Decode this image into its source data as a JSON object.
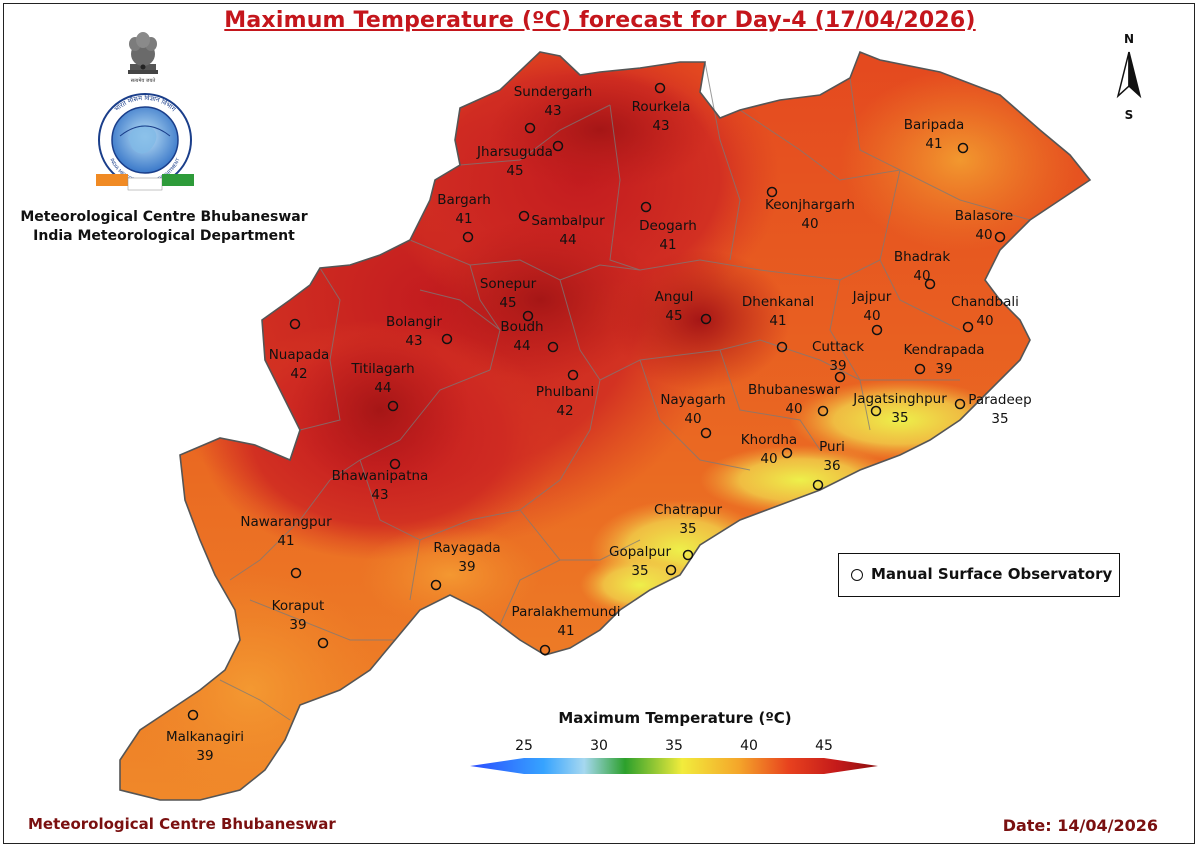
{
  "title": "Maximum Temperature (ºC) forecast for Day-4 (17/04/2026)",
  "organization": {
    "line1": "Meteorological Centre Bhubaneswar",
    "line2": "India Meteorological Department"
  },
  "logo_text": {
    "imd_ring_top": "भारत मौसम विज्ञान विभाग",
    "imd_ring_bottom": "INDIA METEOROLOGICAL DEPARTMENT",
    "emblem_motto": "सत्यमेव जयते"
  },
  "north_arrow": {
    "n": "N",
    "s": "S"
  },
  "legend": {
    "label": "Manual Surface Observatory",
    "icon": "observatory-circle-icon"
  },
  "colorbar": {
    "title": "Maximum Temperature (ºC)",
    "ticks": [
      "25",
      "30",
      "35",
      "40",
      "45"
    ],
    "min": 25,
    "max": 45,
    "colors": [
      "#2b4cff",
      "#36a3ff",
      "#a6d8f0",
      "#2ca02c",
      "#f2ec3c",
      "#f4a52a",
      "#e8421e",
      "#c41a1a",
      "#8b0f0f"
    ]
  },
  "footer": {
    "left": "Meteorological Centre Bhubaneswar",
    "date": "Date: 14/04/2026"
  },
  "stations": [
    {
      "name": "Sundergarh",
      "value": "43"
    },
    {
      "name": "Rourkela",
      "value": "43"
    },
    {
      "name": "Jharsuguda",
      "value": "45"
    },
    {
      "name": "Bargarh",
      "value": "41"
    },
    {
      "name": "Sambalpur",
      "value": "44"
    },
    {
      "name": "Deogarh",
      "value": "41"
    },
    {
      "name": "Keonjhargarh",
      "value": "40"
    },
    {
      "name": "Baripada",
      "value": "41"
    },
    {
      "name": "Balasore",
      "value": "40"
    },
    {
      "name": "Bhadrak",
      "value": "40"
    },
    {
      "name": "Chandbali",
      "value": "40"
    },
    {
      "name": "Jajpur",
      "value": "40"
    },
    {
      "name": "Sonepur",
      "value": "45"
    },
    {
      "name": "Angul",
      "value": "45"
    },
    {
      "name": "Dhenkanal",
      "value": "41"
    },
    {
      "name": "Bolangir",
      "value": "43"
    },
    {
      "name": "Boudh",
      "value": "44"
    },
    {
      "name": "Nuapada",
      "value": "42"
    },
    {
      "name": "Titilagarh",
      "value": "44"
    },
    {
      "name": "Cuttack",
      "value": "39"
    },
    {
      "name": "Kendrapada",
      "value": "39"
    },
    {
      "name": "Phulbani",
      "value": "42"
    },
    {
      "name": "Nayagarh",
      "value": "40"
    },
    {
      "name": "Bhubaneswar",
      "value": "40"
    },
    {
      "name": "Jagatsinghpur",
      "value": "35"
    },
    {
      "name": "Paradeep",
      "value": "35"
    },
    {
      "name": "Khordha",
      "value": "40"
    },
    {
      "name": "Puri",
      "value": "36"
    },
    {
      "name": "Bhawanipatna",
      "value": "43"
    },
    {
      "name": "Nawarangpur",
      "value": "41"
    },
    {
      "name": "Rayagada",
      "value": "39"
    },
    {
      "name": "Chatrapur",
      "value": "35"
    },
    {
      "name": "Gopalpur",
      "value": "35"
    },
    {
      "name": "Paralakhemundi",
      "value": "41"
    },
    {
      "name": "Koraput",
      "value": "39"
    },
    {
      "name": "Malkanagiri",
      "value": "39"
    }
  ]
}
